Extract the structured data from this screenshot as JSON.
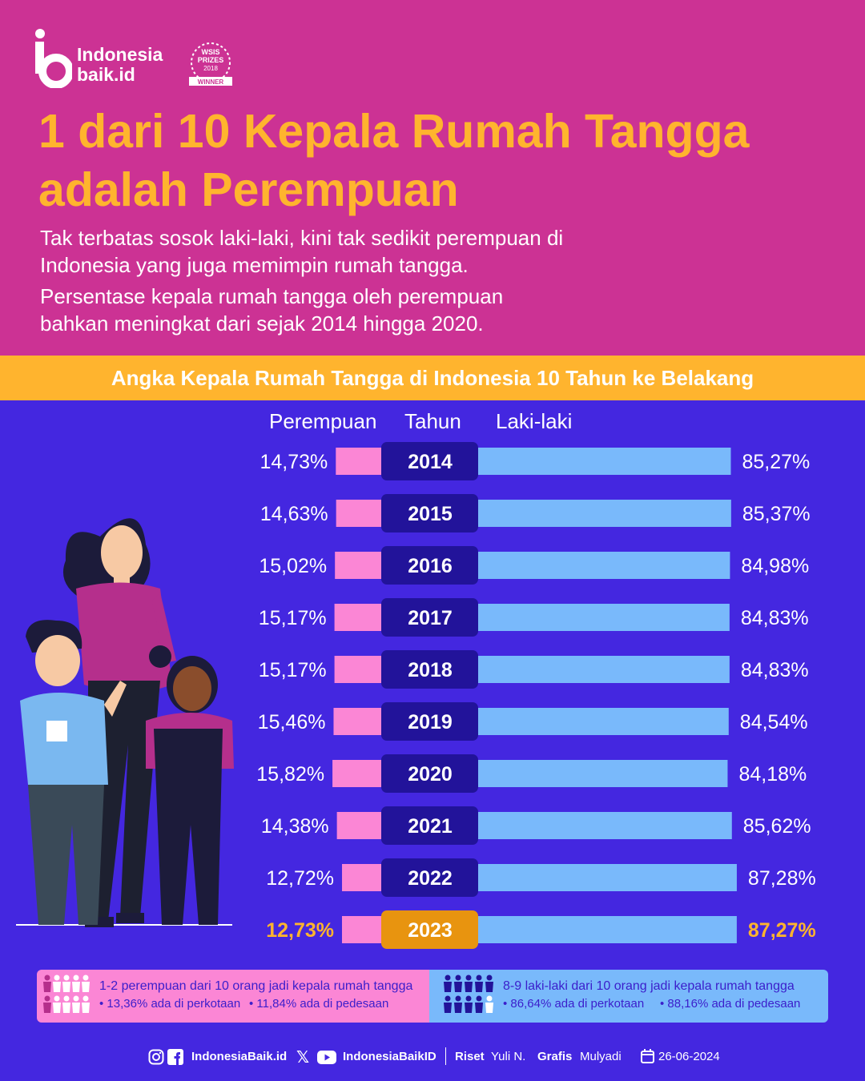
{
  "brand": {
    "line1": "Indonesia",
    "line2": "baik.id",
    "award": [
      "WSIS",
      "PRIZES",
      "2018",
      "WINNER"
    ]
  },
  "title": {
    "line1": "1 dari 10 Kepala Rumah Tangga",
    "line2": "adalah Perempuan"
  },
  "subtitle": {
    "p1_line1": "Tak terbatas sosok laki-laki, kini tak sedikit perempuan di",
    "p1_line2": "Indonesia yang juga memimpin rumah tangga.",
    "p2_line1": "Persentase kepala rumah tangga oleh perempuan",
    "p2_line2": "bahkan meningkat dari sejak 2014 hingga 2020."
  },
  "section_title": "Angka Kepala Rumah Tangga di Indonesia 10 Tahun ke Belakang",
  "colors": {
    "female": "#fb86d5",
    "male": "#79b9fb",
    "year_box": "#22139a",
    "highlight": "#e8940f",
    "accent": "#ffb42e"
  },
  "chart_data": {
    "type": "bar",
    "columns": {
      "left": "Perempuan",
      "middle": "Tahun",
      "right": "Laki-laki"
    },
    "categories": [
      "2014",
      "2015",
      "2016",
      "2017",
      "2018",
      "2019",
      "2020",
      "2021",
      "2022",
      "2023"
    ],
    "series": [
      {
        "name": "Perempuan",
        "values": [
          14.73,
          14.63,
          15.02,
          15.17,
          15.17,
          15.46,
          15.82,
          14.38,
          12.72,
          12.73
        ],
        "labels": [
          "14,73%",
          "14,63%",
          "15,02%",
          "15,17%",
          "15,17%",
          "15,46%",
          "15,82%",
          "14,38%",
          "12,72%",
          "12,73%"
        ]
      },
      {
        "name": "Laki-laki",
        "values": [
          85.27,
          85.37,
          84.98,
          84.83,
          84.83,
          84.54,
          84.18,
          85.62,
          87.28,
          87.27
        ],
        "labels": [
          "85,27%",
          "85,37%",
          "84,98%",
          "84,83%",
          "84,83%",
          "84,54%",
          "84,18%",
          "85,62%",
          "87,28%",
          "87,27%"
        ]
      }
    ],
    "highlighted_category": "2023"
  },
  "summary": {
    "female_title": "1-2 perempuan dari 10 orang jadi kepala rumah tangga",
    "female_detail_1": "• 13,36% ada di perkotaan",
    "female_detail_2": "• 11,84% ada di pedesaan",
    "male_title": "8-9 laki-laki dari 10 orang jadi kepala rumah tangga",
    "male_detail_1": "• 86,64% ada di perkotaan",
    "male_detail_2": "• 88,16% ada di pedesaan"
  },
  "credits": {
    "handle1": "IndonesiaBaik.id",
    "handle2": "IndonesiaBaikID",
    "riset_label": "Riset",
    "riset_name": "Yuli N.",
    "grafis_label": "Grafis",
    "grafis_name": "Mulyadi",
    "date": "26-06-2024"
  }
}
